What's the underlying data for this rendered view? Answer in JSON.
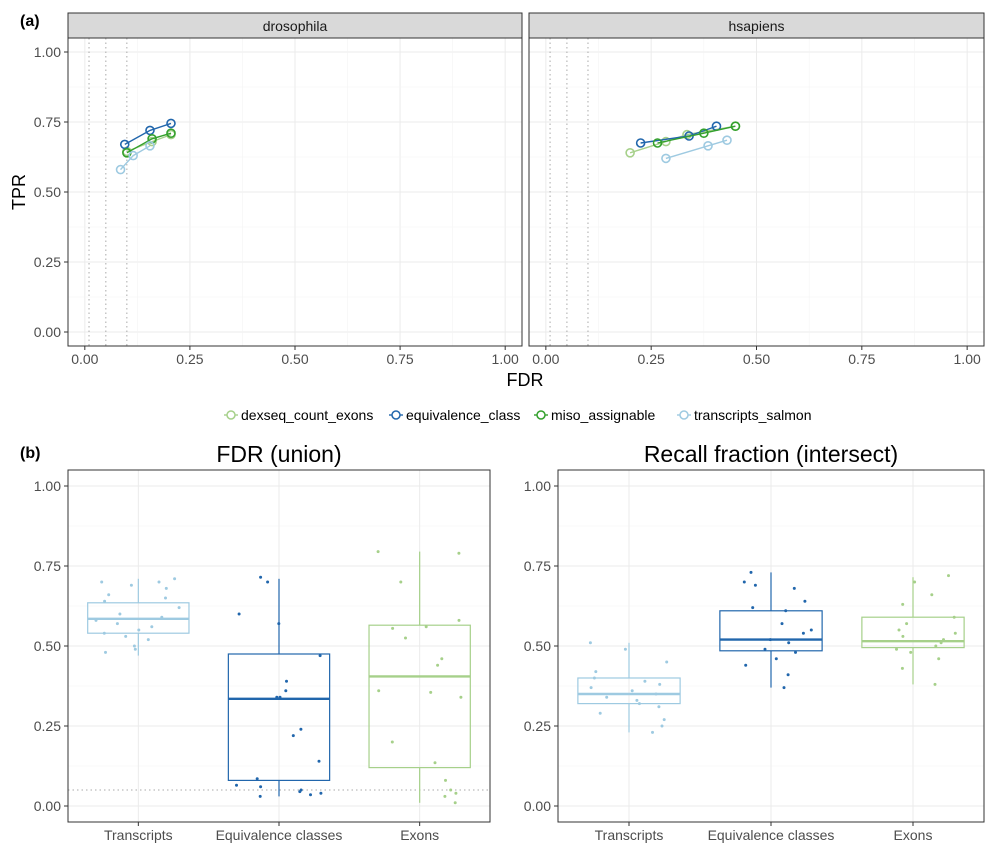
{
  "panel_labels": {
    "a": "(a)",
    "b": "(b)"
  },
  "colors": {
    "dexseq_count_exons": "#a6d08a",
    "equivalence_class": "#2166ac",
    "miso_assignable": "#33a02c",
    "transcripts_salmon": "#9ecae1",
    "strip_bg": "#d9d9d9",
    "grid": "#ebebeb",
    "panel_border": "#333333",
    "ref_line": "#aaaaaa"
  },
  "legend": {
    "position": "bottom",
    "entries": [
      "dexseq_count_exons",
      "equivalence_class",
      "miso_assignable",
      "transcripts_salmon"
    ]
  },
  "chart_data": [
    {
      "id": "tpr-fdr",
      "type": "line",
      "xlabel": "FDR",
      "ylabel": "TPR",
      "xlim": [
        -0.04,
        1.04
      ],
      "ylim": [
        -0.05,
        1.05
      ],
      "x_ticks": [
        "0.00",
        "0.25",
        "0.50",
        "0.75",
        "1.00"
      ],
      "y_ticks": [
        "0.00",
        "0.25",
        "0.50",
        "0.75",
        "1.00"
      ],
      "reference_fdr_thresholds": [
        0.01,
        0.05,
        0.1
      ],
      "facets": [
        {
          "name": "drosophila",
          "series": [
            {
              "name": "dexseq_count_exons",
              "points": [
                [
                  0.1,
                  0.645
                ],
                [
                  0.16,
                  0.68
                ],
                [
                  0.205,
                  0.705
                ]
              ]
            },
            {
              "name": "equivalence_class",
              "points": [
                [
                  0.095,
                  0.67
                ],
                [
                  0.155,
                  0.72
                ],
                [
                  0.205,
                  0.745
                ]
              ]
            },
            {
              "name": "miso_assignable",
              "points": [
                [
                  0.1,
                  0.64
                ],
                [
                  0.16,
                  0.69
                ],
                [
                  0.205,
                  0.71
                ]
              ]
            },
            {
              "name": "transcripts_salmon",
              "points": [
                [
                  0.085,
                  0.58
                ],
                [
                  0.115,
                  0.63
                ],
                [
                  0.155,
                  0.665
                ]
              ]
            }
          ]
        },
        {
          "name": "hsapiens",
          "series": [
            {
              "name": "dexseq_count_exons",
              "points": [
                [
                  0.2,
                  0.64
                ],
                [
                  0.285,
                  0.68
                ],
                [
                  0.335,
                  0.705
                ],
                [
                  0.45,
                  0.735
                ]
              ]
            },
            {
              "name": "equivalence_class",
              "points": [
                [
                  0.225,
                  0.675
                ],
                [
                  0.34,
                  0.7
                ],
                [
                  0.405,
                  0.735
                ]
              ]
            },
            {
              "name": "miso_assignable",
              "points": [
                [
                  0.265,
                  0.675
                ],
                [
                  0.375,
                  0.71
                ],
                [
                  0.45,
                  0.735
                ]
              ]
            },
            {
              "name": "transcripts_salmon",
              "points": [
                [
                  0.285,
                  0.62
                ],
                [
                  0.385,
                  0.665
                ],
                [
                  0.43,
                  0.685
                ]
              ]
            }
          ]
        }
      ]
    },
    {
      "id": "fdr-union",
      "type": "box",
      "title": "FDR (union)",
      "categories": [
        "Transcripts",
        "Equivalence classes",
        "Exons"
      ],
      "ylim": [
        -0.05,
        1.05
      ],
      "y_ticks": [
        "0.00",
        "0.25",
        "0.50",
        "0.75",
        "1.00"
      ],
      "reference_y": 0.05,
      "boxes": [
        {
          "category": "Transcripts",
          "color_key": "transcripts_salmon",
          "q1": 0.54,
          "median": 0.585,
          "q3": 0.635,
          "whisker_low": 0.47,
          "whisker_high": 0.71,
          "points": [
            0.71,
            0.7,
            0.7,
            0.69,
            0.68,
            0.66,
            0.65,
            0.64,
            0.62,
            0.6,
            0.59,
            0.58,
            0.57,
            0.56,
            0.55,
            0.54,
            0.53,
            0.52,
            0.5,
            0.49,
            0.48
          ]
        },
        {
          "category": "Equivalence classes",
          "color_key": "equivalence_class",
          "q1": 0.08,
          "median": 0.335,
          "q3": 0.475,
          "whisker_low": 0.03,
          "whisker_high": 0.71,
          "points": [
            0.715,
            0.7,
            0.6,
            0.57,
            0.47,
            0.39,
            0.36,
            0.34,
            0.34,
            0.24,
            0.22,
            0.14,
            0.085,
            0.065,
            0.06,
            0.05,
            0.045,
            0.04,
            0.035,
            0.03
          ]
        },
        {
          "category": "Exons",
          "color_key": "dexseq_count_exons",
          "q1": 0.12,
          "median": 0.405,
          "q3": 0.565,
          "whisker_low": 0.01,
          "whisker_high": 0.795,
          "points": [
            0.795,
            0.79,
            0.7,
            0.58,
            0.56,
            0.555,
            0.525,
            0.46,
            0.44,
            0.36,
            0.355,
            0.34,
            0.2,
            0.135,
            0.08,
            0.05,
            0.04,
            0.03,
            0.01
          ]
        }
      ]
    },
    {
      "id": "recall-intersect",
      "type": "box",
      "title": "Recall fraction (intersect)",
      "categories": [
        "Transcripts",
        "Equivalence classes",
        "Exons"
      ],
      "ylim": [
        -0.05,
        1.05
      ],
      "y_ticks": [
        "0.00",
        "0.25",
        "0.50",
        "0.75",
        "1.00"
      ],
      "boxes": [
        {
          "category": "Transcripts",
          "color_key": "transcripts_salmon",
          "q1": 0.32,
          "median": 0.35,
          "q3": 0.4,
          "whisker_low": 0.23,
          "whisker_high": 0.51,
          "points": [
            0.51,
            0.49,
            0.45,
            0.42,
            0.4,
            0.39,
            0.38,
            0.37,
            0.36,
            0.35,
            0.34,
            0.33,
            0.32,
            0.31,
            0.29,
            0.27,
            0.25,
            0.23
          ]
        },
        {
          "category": "Equivalence classes",
          "color_key": "equivalence_class",
          "q1": 0.485,
          "median": 0.52,
          "q3": 0.61,
          "whisker_low": 0.37,
          "whisker_high": 0.73,
          "points": [
            0.73,
            0.7,
            0.69,
            0.68,
            0.64,
            0.62,
            0.61,
            0.57,
            0.55,
            0.54,
            0.52,
            0.51,
            0.49,
            0.48,
            0.46,
            0.44,
            0.41,
            0.37
          ]
        },
        {
          "category": "Exons",
          "color_key": "dexseq_count_exons",
          "q1": 0.495,
          "median": 0.515,
          "q3": 0.59,
          "whisker_low": 0.38,
          "whisker_high": 0.715,
          "points": [
            0.72,
            0.7,
            0.66,
            0.63,
            0.59,
            0.57,
            0.55,
            0.54,
            0.53,
            0.52,
            0.51,
            0.5,
            0.49,
            0.48,
            0.46,
            0.43,
            0.38
          ]
        }
      ]
    }
  ]
}
